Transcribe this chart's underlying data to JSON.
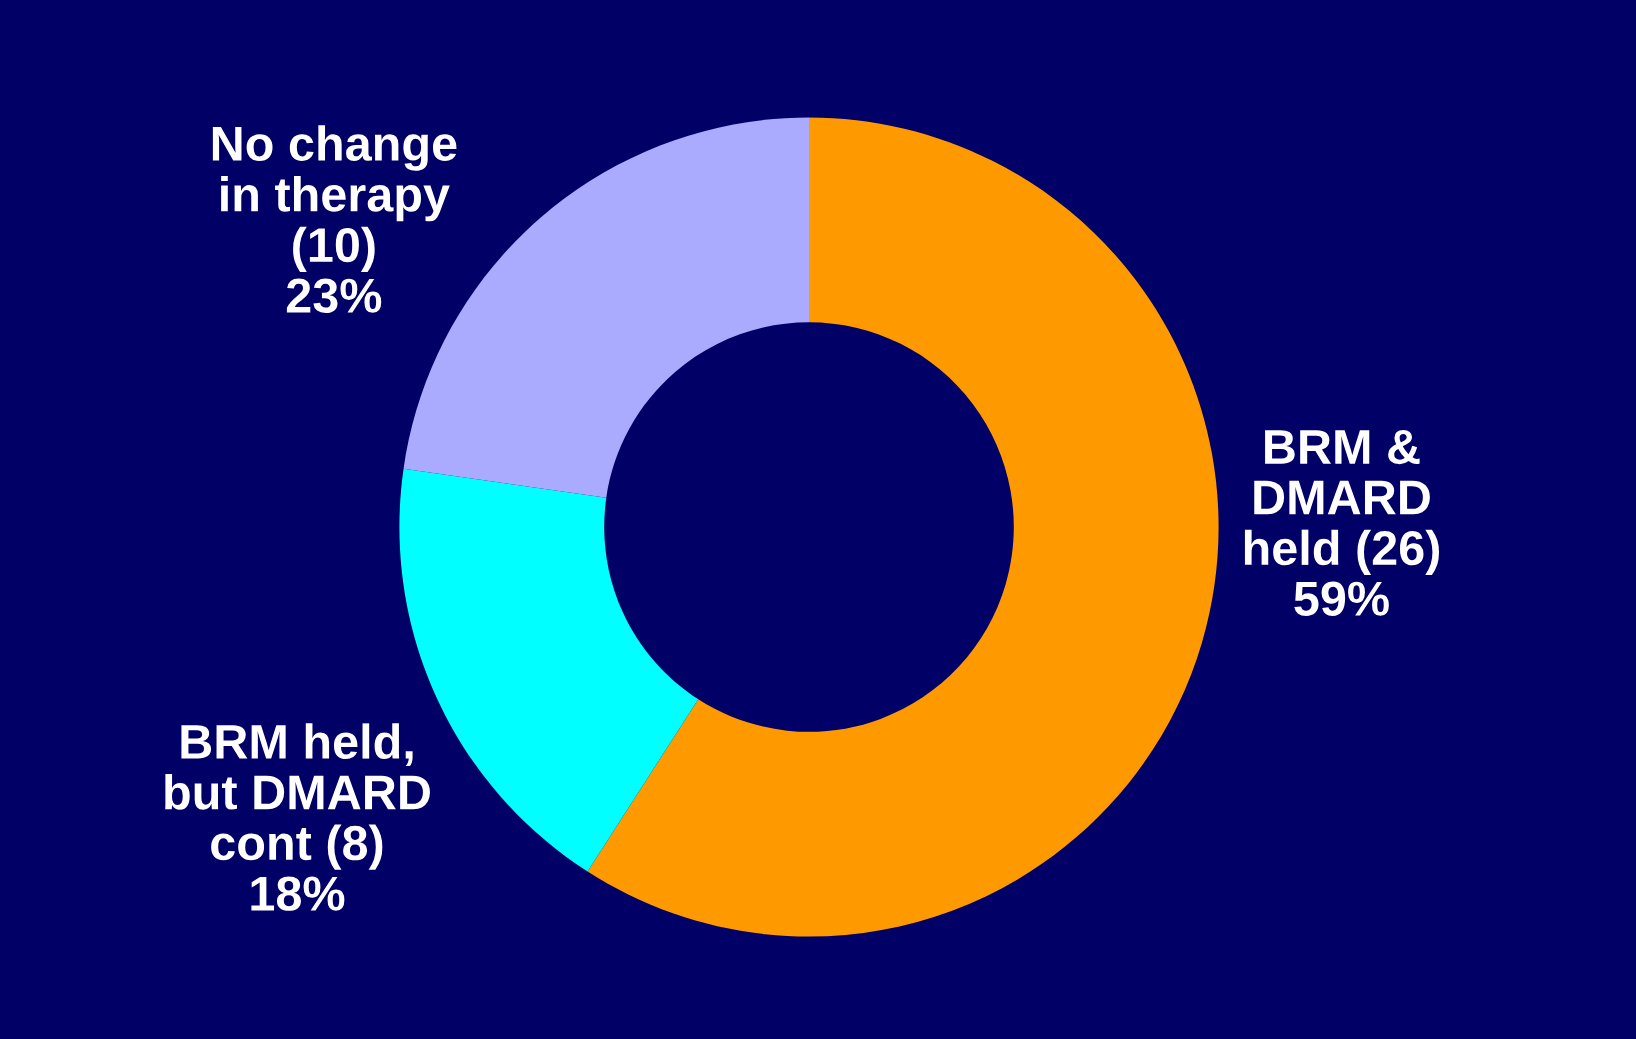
{
  "chart_data": {
    "type": "donut",
    "categories": [
      "BRM &\nDMARD\nheld (26)\n59%",
      "BRM held,\nbut DMARD\ncont (8)\n18%",
      "No change\nin therapy\n(10)\n23%"
    ],
    "values": [
      26,
      8,
      10
    ],
    "colors": [
      "#ff9900",
      "#00ffff",
      "#aaaaff"
    ],
    "legend": false
  }
}
